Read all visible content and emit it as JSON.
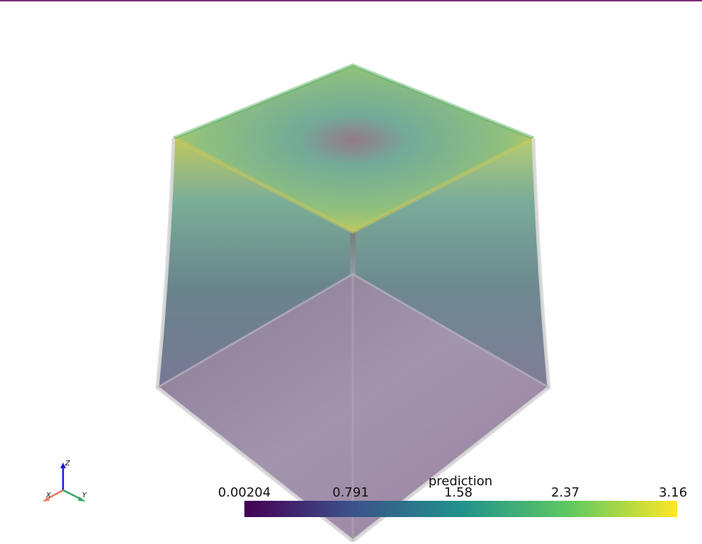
{
  "viewer": {
    "colorbar": {
      "title": "prediction",
      "ticks": [
        "0.00204",
        "0.791",
        "1.58",
        "2.37",
        "3.16"
      ],
      "colormap": "viridis",
      "colors": [
        "#440154",
        "#3b528b",
        "#21918c",
        "#5ec962",
        "#fde725"
      ]
    },
    "axes": {
      "x_label": "X",
      "y_label": "Y",
      "z_label": "Z",
      "x_color": "#e9795b",
      "y_color": "#3aa36b",
      "z_color": "#1a1ad6"
    },
    "accent": "#7b2a7a"
  }
}
